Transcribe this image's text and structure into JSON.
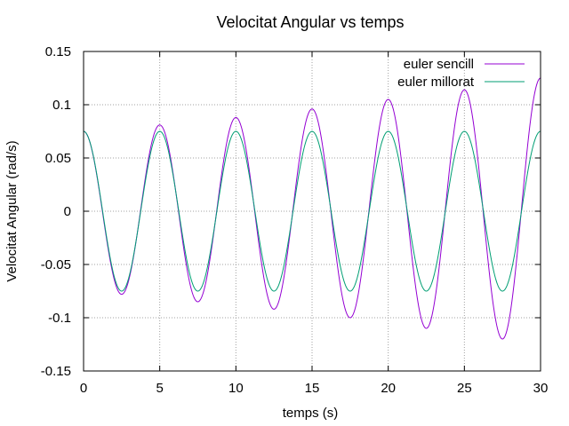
{
  "chart_data": {
    "type": "line",
    "title": "Velocitat Angular vs temps",
    "xlabel": "temps (s)",
    "ylabel": "Velocitat Angular (rad/s)",
    "xlim": [
      0,
      30
    ],
    "ylim": [
      -0.15,
      0.15
    ],
    "xticks": [
      0,
      5,
      10,
      15,
      20,
      25,
      30
    ],
    "yticks": [
      -0.15,
      -0.1,
      -0.05,
      0,
      0.05,
      0.1,
      0.15
    ],
    "xtick_labels": [
      "0",
      "5",
      "10",
      "15",
      "20",
      "25",
      "30"
    ],
    "ytick_labels": [
      "-0.15",
      "-0.1",
      "-0.05",
      "0",
      "0.05",
      "0.1",
      "0.15"
    ],
    "grid": true,
    "legend_position": "top-right",
    "series": [
      {
        "name": "euler sencill",
        "color": "#9400d3",
        "x": [
          0,
          2.5,
          5,
          7.5,
          10,
          12.5,
          15,
          17.5,
          20,
          22.5,
          25,
          27.5,
          30
        ],
        "y": [
          0.075,
          -0.078,
          0.081,
          -0.085,
          0.088,
          -0.092,
          0.096,
          -0.1,
          0.105,
          -0.11,
          0.114,
          -0.12,
          0.125
        ]
      },
      {
        "name": "euler millorat",
        "color": "#009e73",
        "x": [
          0,
          2.5,
          5,
          7.5,
          10,
          12.5,
          15,
          17.5,
          20,
          22.5,
          25,
          27.5,
          30
        ],
        "y": [
          0.075,
          -0.075,
          0.075,
          -0.075,
          0.075,
          -0.075,
          0.075,
          -0.075,
          0.075,
          -0.075,
          0.075,
          -0.075,
          0.075
        ]
      }
    ]
  }
}
